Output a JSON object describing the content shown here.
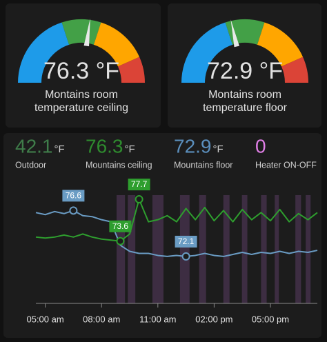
{
  "chart_data": [
    {
      "type": "gauge",
      "title": "Montains room temperature ceiling",
      "value": 76.3,
      "value_label": "76.3 °F",
      "ylim": [
        60,
        90
      ],
      "bands": [
        {
          "from": 60,
          "to": 72,
          "color": "#1e9be9"
        },
        {
          "from": 72,
          "to": 78,
          "color": "#43a047"
        },
        {
          "from": 78,
          "to": 86,
          "color": "#ffa600"
        },
        {
          "from": 86,
          "to": 90,
          "color": "#db4437"
        }
      ],
      "needle_color": "#e8e8e8"
    },
    {
      "type": "gauge",
      "title": "Montains room temperature floor",
      "value": 72.9,
      "value_label": "72.9 °F",
      "ylim": [
        60,
        90
      ],
      "bands": [
        {
          "from": 60,
          "to": 72,
          "color": "#1e9be9"
        },
        {
          "from": 72,
          "to": 78,
          "color": "#43a047"
        },
        {
          "from": 78,
          "to": 86,
          "color": "#ffa600"
        },
        {
          "from": 86,
          "to": 90,
          "color": "#db4437"
        }
      ],
      "needle_color": "#e8e8e8"
    },
    {
      "type": "entities",
      "items": [
        {
          "name": "Outdoor",
          "value": 42.1,
          "unit": "°F",
          "color": "#3f7d4a"
        },
        {
          "name": "Mountains ceiling",
          "value": 76.3,
          "unit": "°F",
          "color": "#2e8b2e"
        },
        {
          "name": "Mountains floor",
          "value": 72.9,
          "unit": "°F",
          "color": "#5b8fbd"
        },
        {
          "name": "Heater ON-OFF",
          "value": 0,
          "color": "#e07fe6"
        }
      ]
    },
    {
      "type": "line",
      "x": [
        4.5,
        5,
        5.5,
        6,
        6.5,
        7,
        7.5,
        8,
        8.5,
        9,
        9.5,
        10,
        10.5,
        11,
        11.5,
        12,
        12.5,
        13,
        13.5,
        14,
        14.5,
        15,
        15.5,
        16,
        16.5,
        17,
        17.5,
        18,
        18.5,
        19,
        19.5
      ],
      "series": [
        {
          "color": "#2e9e2e",
          "values": [
            74.0,
            73.9,
            74.0,
            74.2,
            74.0,
            74.3,
            74.0,
            73.8,
            73.7,
            73.6,
            74.3,
            77.7,
            75.5,
            75.7,
            76.1,
            75.5,
            76.8,
            75.7,
            76.9,
            75.6,
            76.6,
            75.5,
            76.7,
            75.7,
            76.4,
            75.6,
            76.7,
            75.5,
            76.3,
            75.7,
            76.4
          ],
          "value_labels": [
            null,
            null,
            null,
            null,
            null,
            null,
            null,
            null,
            null,
            "73.6",
            null,
            "77.7",
            null,
            null,
            null,
            null,
            null,
            null,
            null,
            null,
            null,
            null,
            null,
            null,
            null,
            null,
            null,
            null,
            null,
            null,
            null
          ]
        },
        {
          "color": "#6a9cc4",
          "values": [
            76.4,
            76.2,
            76.5,
            76.3,
            76.6,
            76.1,
            76.0,
            75.7,
            75.5,
            73.2,
            72.6,
            72.4,
            72.4,
            72.2,
            72.1,
            72.2,
            72.1,
            72.2,
            72.4,
            72.2,
            72.1,
            72.3,
            72.5,
            72.3,
            72.5,
            72.4,
            72.6,
            72.4,
            72.6,
            72.5,
            72.7
          ],
          "value_labels": [
            null,
            null,
            null,
            null,
            "76.6",
            null,
            null,
            null,
            null,
            null,
            null,
            null,
            null,
            null,
            null,
            null,
            "72.1",
            null,
            null,
            null,
            null,
            null,
            null,
            null,
            null,
            null,
            null,
            null,
            null,
            null,
            null
          ]
        }
      ],
      "shaded": [
        [
          8.8,
          9.25
        ],
        [
          9.4,
          9.8
        ],
        [
          10.71,
          11.3
        ],
        [
          12.18,
          12.69
        ],
        [
          13.2,
          13.57
        ],
        [
          14.49,
          14.82
        ],
        [
          15.48,
          15.77
        ],
        [
          16.5,
          16.8
        ],
        [
          17.23,
          17.45
        ],
        [
          18.33,
          18.63
        ],
        [
          18.88,
          19.14
        ]
      ],
      "shade_color": "#5a3d63",
      "xlim": [
        4.5,
        19.5
      ],
      "xticks": [
        {
          "value": 5,
          "label": "05:00 am"
        },
        {
          "value": 8,
          "label": "08:00 am"
        },
        {
          "value": 11,
          "label": "11:00 am"
        },
        {
          "value": 14,
          "label": "02:00 pm"
        },
        {
          "value": 17,
          "label": "05:00 pm"
        }
      ],
      "ylim": [
        67.5,
        78.65
      ]
    }
  ]
}
